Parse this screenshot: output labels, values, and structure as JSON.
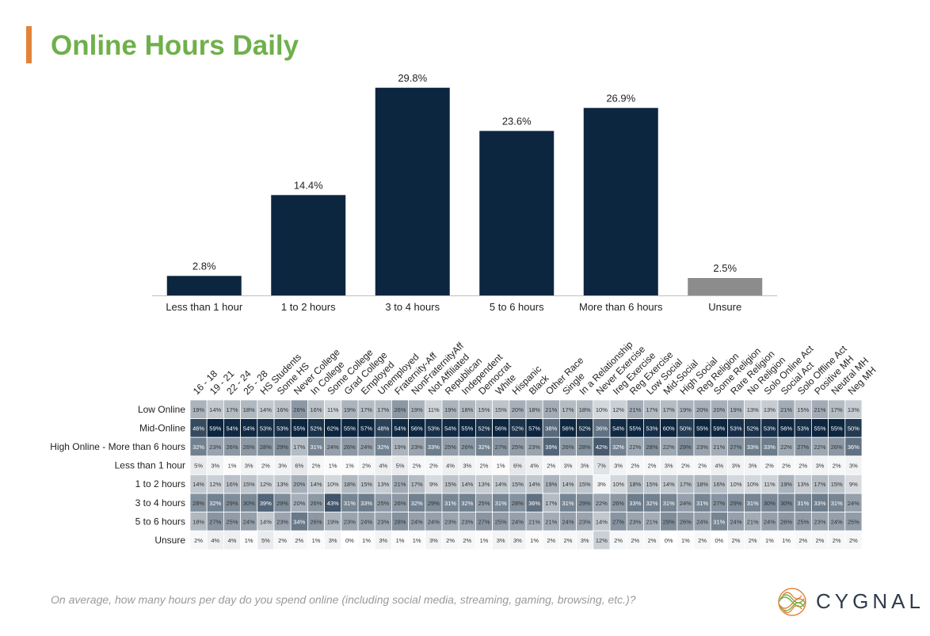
{
  "title": "Online Hours Daily",
  "footnote": "On average, how many hours per day do you spend online (including social media, streaming, gaming, browsing, etc.)?",
  "brand": "CYGNAL",
  "colors": {
    "bar": "#0d2640",
    "unsure_bar": "#8c8c8c",
    "accent": "#e3833a",
    "title": "#6fb04a",
    "heat_low": "#ffffff",
    "heat_high": "#0d2640"
  },
  "chart_data": [
    {
      "type": "bar",
      "categories": [
        "Less than 1 hour",
        "1 to 2 hours",
        "3 to 4 hours",
        "5 to 6 hours",
        "More than 6 hours",
        "Unsure"
      ],
      "values": [
        2.8,
        14.4,
        29.8,
        23.6,
        26.9,
        2.5
      ],
      "data_labels": [
        "2.8%",
        "14.4%",
        "29.8%",
        "23.6%",
        "26.9%",
        "2.5%"
      ],
      "ylim": [
        0,
        30
      ],
      "grid": false
    },
    {
      "type": "heatmap",
      "columns": [
        "16 - 18",
        "19 - 21",
        "22 - 24",
        "25 - 28",
        "HS Students",
        "Some HS",
        "Never College",
        "In College",
        "Some College",
        "Grad College",
        "Employed",
        "Unemployed",
        "Fraternity-Aff",
        "NonFraternityAff",
        "Not Affiliated",
        "Republican",
        "Independent",
        "Democrat",
        "White",
        "Hispanic",
        "Black",
        "Other Race",
        "Single",
        "In a Relationship",
        "Never Exercise",
        "Ireg Exercise",
        "Reg Exercise",
        "Low Social",
        "Mid-Social",
        "High Social",
        "Reg Religion",
        "Some Religion",
        "Rare Religion",
        "No Religion",
        "Solo Online Act",
        "Social Act",
        "Solo Offline Act",
        "Positive MH",
        "Neutral MH",
        "Neg MH"
      ],
      "rows": [
        {
          "label": "Low Online",
          "values": [
            19,
            14,
            17,
            18,
            14,
            16,
            26,
            16,
            11,
            19,
            17,
            17,
            26,
            19,
            11,
            19,
            18,
            15,
            15,
            20,
            18,
            21,
            17,
            18,
            10,
            12,
            21,
            17,
            17,
            19,
            20,
            20,
            19,
            13,
            13,
            21,
            15,
            21,
            17,
            13
          ]
        },
        {
          "label": "Mid-Online",
          "values": [
            46,
            59,
            54,
            54,
            53,
            53,
            55,
            52,
            62,
            55,
            57,
            48,
            54,
            56,
            53,
            54,
            55,
            52,
            56,
            52,
            57,
            38,
            56,
            52,
            36,
            54,
            55,
            53,
            60,
            50,
            55,
            59,
            53,
            52,
            53,
            56,
            53,
            55,
            55,
            50
          ]
        },
        {
          "label": "High Online - More than 6 hours",
          "values": [
            32,
            23,
            26,
            26,
            28,
            29,
            17,
            31,
            24,
            26,
            24,
            32,
            19,
            23,
            33,
            25,
            26,
            32,
            27,
            25,
            23,
            39,
            26,
            28,
            42,
            32,
            22,
            28,
            22,
            29,
            23,
            21,
            27,
            33,
            33,
            22,
            27,
            22,
            26,
            36
          ]
        },
        {
          "label": "Less than 1 hour",
          "values": [
            5,
            3,
            1,
            3,
            2,
            3,
            6,
            2,
            1,
            1,
            2,
            4,
            5,
            2,
            2,
            4,
            3,
            2,
            1,
            6,
            4,
            2,
            3,
            3,
            7,
            3,
            2,
            2,
            3,
            2,
            2,
            4,
            3,
            3,
            2,
            2,
            2,
            3,
            2,
            3
          ]
        },
        {
          "label": "1 to 2 hours",
          "values": [
            14,
            12,
            16,
            15,
            12,
            13,
            20,
            14,
            10,
            18,
            15,
            13,
            21,
            17,
            9,
            15,
            14,
            13,
            14,
            15,
            14,
            19,
            14,
            15,
            3,
            10,
            18,
            15,
            14,
            17,
            18,
            16,
            10,
            10,
            11,
            19,
            13,
            17,
            15,
            9
          ]
        },
        {
          "label": "3 to 4 hours",
          "values": [
            28,
            32,
            29,
            30,
            39,
            29,
            20,
            26,
            43,
            31,
            33,
            25,
            26,
            32,
            29,
            31,
            32,
            25,
            31,
            28,
            36,
            17,
            31,
            29,
            22,
            26,
            33,
            32,
            31,
            24,
            31,
            27,
            29,
            31,
            30,
            30,
            31,
            33,
            31,
            24
          ]
        },
        {
          "label": "5 to 6 hours",
          "values": [
            18,
            27,
            25,
            24,
            14,
            23,
            34,
            26,
            19,
            23,
            24,
            23,
            28,
            24,
            24,
            23,
            23,
            27,
            25,
            24,
            21,
            21,
            24,
            23,
            14,
            27,
            23,
            21,
            29,
            26,
            24,
            31,
            24,
            21,
            24,
            26,
            25,
            23,
            24,
            25
          ]
        },
        {
          "label": "Unsure",
          "values": [
            2,
            4,
            4,
            1,
            5,
            2,
            2,
            1,
            3,
            0,
            1,
            3,
            1,
            1,
            3,
            2,
            2,
            1,
            3,
            3,
            1,
            2,
            2,
            3,
            12,
            2,
            2,
            2,
            0,
            1,
            2,
            0,
            2,
            2,
            1,
            1,
            2,
            2,
            2,
            2
          ]
        }
      ],
      "unit": "%"
    }
  ]
}
